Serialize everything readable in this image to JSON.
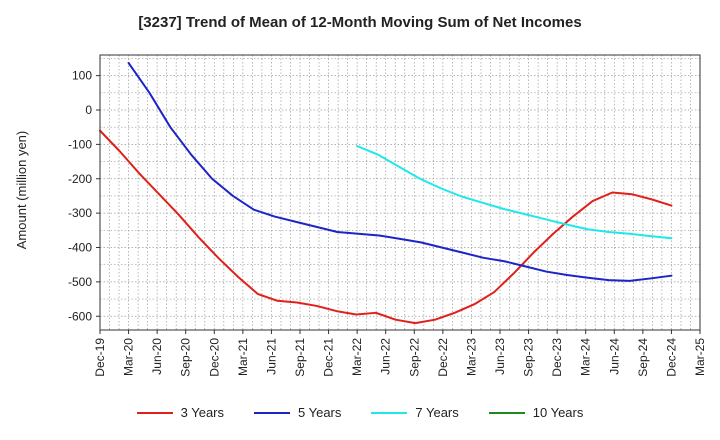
{
  "chart_data": {
    "type": "line",
    "title": "[3237]  Trend of Mean of 12-Month Moving Sum of Net Incomes",
    "ylabel": "Amount (million yen)",
    "xlabel": "",
    "ylim": [
      -640,
      160
    ],
    "yticks": [
      100,
      0,
      -100,
      -200,
      -300,
      -400,
      -500,
      -600
    ],
    "x_tick_labels": [
      "Dec-19",
      "Mar-20",
      "Jun-20",
      "Sep-20",
      "Dec-20",
      "Mar-21",
      "Jun-21",
      "Sep-21",
      "Dec-21",
      "Mar-22",
      "Jun-22",
      "Sep-22",
      "Dec-22",
      "Mar-23",
      "Jun-23",
      "Sep-23",
      "Dec-23",
      "Mar-24",
      "Jun-24",
      "Sep-24",
      "Dec-24",
      "Mar-25"
    ],
    "grid": true,
    "legend_position": "bottom",
    "series": [
      {
        "name": "3 Years",
        "color": "#e0201b",
        "start_index": 0,
        "values": [
          -60,
          -120,
          -185,
          -245,
          -305,
          -370,
          -430,
          -485,
          -535,
          -555,
          -560,
          -570,
          -585,
          -595,
          -590,
          -610,
          -620,
          -610,
          -590,
          -565,
          -530,
          -475,
          -415,
          -360,
          -310,
          -265,
          -240,
          -245,
          -260,
          -278
        ]
      },
      {
        "name": "5 Years",
        "color": "#1d24c8",
        "start_index": 1,
        "values": [
          137,
          50,
          -50,
          -130,
          -200,
          -250,
          -290,
          -310,
          -325,
          -340,
          -355,
          -360,
          -365,
          -375,
          -385,
          -400,
          -415,
          -430,
          -440,
          -455,
          -470,
          -480,
          -488,
          -495,
          -497,
          -490,
          -482
        ]
      },
      {
        "name": "7 Years",
        "color": "#1ee8ea",
        "start_index": 9,
        "values": [
          -105,
          -130,
          -165,
          -200,
          -228,
          -252,
          -270,
          -288,
          -303,
          -318,
          -333,
          -347,
          -355,
          -360,
          -367,
          -373
        ]
      },
      {
        "name": "10 Years",
        "color": "#1e8a1e",
        "start_index": 0,
        "values": []
      }
    ]
  }
}
